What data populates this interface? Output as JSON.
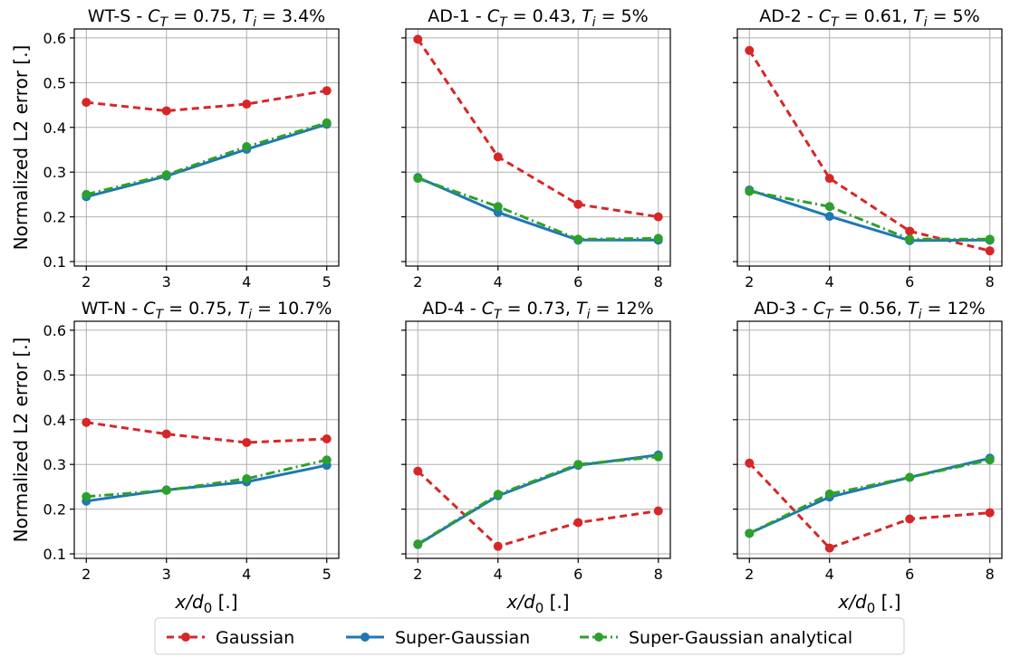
{
  "chart_data": [
    {
      "type": "line",
      "title": "WT-S - C_T = 0.75, T_i = 3.4%",
      "title_parts": {
        "name": "WT-S",
        "ct": "0.75",
        "ti": "3.4%"
      },
      "xlabel": "",
      "ylabel": "Normalized L2 error [.]",
      "x": [
        2,
        3,
        4,
        5
      ],
      "xticks": [
        2,
        3,
        4,
        5
      ],
      "ylim": [
        0.09,
        0.62
      ],
      "grid": true,
      "series": [
        {
          "name": "Gaussian",
          "values": [
            0.456,
            0.437,
            0.452,
            0.482
          ]
        },
        {
          "name": "Super-Gaussian",
          "values": [
            0.245,
            0.291,
            0.351,
            0.407
          ]
        },
        {
          "name": "Super-Gaussian analytical",
          "values": [
            0.25,
            0.294,
            0.357,
            0.41
          ]
        }
      ]
    },
    {
      "type": "line",
      "title": "AD-1 - C_T = 0.43, T_i = 5%",
      "title_parts": {
        "name": "AD-1",
        "ct": "0.43",
        "ti": "5%"
      },
      "xlabel": "",
      "ylabel": "",
      "x": [
        2,
        4,
        6,
        8
      ],
      "xticks": [
        2,
        4,
        6,
        8
      ],
      "ylim": [
        0.09,
        0.62
      ],
      "grid": true,
      "series": [
        {
          "name": "Gaussian",
          "values": [
            0.597,
            0.334,
            0.228,
            0.2
          ]
        },
        {
          "name": "Super-Gaussian",
          "values": [
            0.288,
            0.21,
            0.148,
            0.148
          ]
        },
        {
          "name": "Super-Gaussian analytical",
          "values": [
            0.286,
            0.223,
            0.15,
            0.152
          ]
        }
      ]
    },
    {
      "type": "line",
      "title": "AD-2 - C_T = 0.61, T_i = 5%",
      "title_parts": {
        "name": "AD-2",
        "ct": "0.61",
        "ti": "5%"
      },
      "xlabel": "",
      "ylabel": "",
      "x": [
        2,
        4,
        6,
        8
      ],
      "xticks": [
        2,
        4,
        6,
        8
      ],
      "ylim": [
        0.09,
        0.62
      ],
      "grid": true,
      "series": [
        {
          "name": "Gaussian",
          "values": [
            0.572,
            0.286,
            0.168,
            0.124
          ]
        },
        {
          "name": "Super-Gaussian",
          "values": [
            0.26,
            0.201,
            0.147,
            0.148
          ]
        },
        {
          "name": "Super-Gaussian analytical",
          "values": [
            0.257,
            0.223,
            0.15,
            0.15
          ]
        }
      ]
    },
    {
      "type": "line",
      "title": "WT-N - C_T = 0.75, T_i = 10.7%",
      "title_parts": {
        "name": "WT-N",
        "ct": "0.75",
        "ti": "10.7%"
      },
      "xlabel": "x/d_0 [.]",
      "ylabel": "Normalized L2 error [.]",
      "x": [
        2,
        3,
        4,
        5
      ],
      "xticks": [
        2,
        3,
        4,
        5
      ],
      "ylim": [
        0.09,
        0.62
      ],
      "grid": true,
      "series": [
        {
          "name": "Gaussian",
          "values": [
            0.394,
            0.368,
            0.349,
            0.357
          ]
        },
        {
          "name": "Super-Gaussian",
          "values": [
            0.218,
            0.243,
            0.261,
            0.298
          ]
        },
        {
          "name": "Super-Gaussian analytical",
          "values": [
            0.228,
            0.242,
            0.268,
            0.31
          ]
        }
      ]
    },
    {
      "type": "line",
      "title": "AD-4 - C_T = 0.73, T_i = 12%",
      "title_parts": {
        "name": "AD-4",
        "ct": "0.73",
        "ti": "12%"
      },
      "xlabel": "x/d_0 [.]",
      "ylabel": "",
      "x": [
        2,
        4,
        6,
        8
      ],
      "xticks": [
        2,
        4,
        6,
        8
      ],
      "ylim": [
        0.09,
        0.62
      ],
      "grid": true,
      "series": [
        {
          "name": "Gaussian",
          "values": [
            0.285,
            0.117,
            0.17,
            0.196
          ]
        },
        {
          "name": "Super-Gaussian",
          "values": [
            0.121,
            0.23,
            0.298,
            0.321
          ]
        },
        {
          "name": "Super-Gaussian analytical",
          "values": [
            0.122,
            0.233,
            0.3,
            0.317
          ]
        }
      ]
    },
    {
      "type": "line",
      "title": "AD-3 - C_T = 0.56, T_i = 12%",
      "title_parts": {
        "name": "AD-3",
        "ct": "0.56",
        "ti": "12%"
      },
      "xlabel": "x/d_0 [.]",
      "ylabel": "",
      "x": [
        2,
        4,
        6,
        8
      ],
      "xticks": [
        2,
        4,
        6,
        8
      ],
      "ylim": [
        0.09,
        0.62
      ],
      "grid": true,
      "series": [
        {
          "name": "Gaussian",
          "values": [
            0.303,
            0.113,
            0.178,
            0.192
          ]
        },
        {
          "name": "Super-Gaussian",
          "values": [
            0.146,
            0.227,
            0.271,
            0.314
          ]
        },
        {
          "name": "Super-Gaussian analytical",
          "values": [
            0.146,
            0.234,
            0.271,
            0.31
          ]
        }
      ]
    }
  ],
  "shared": {
    "yticks": [
      0.1,
      0.2,
      0.3,
      0.4,
      0.5,
      0.6
    ],
    "ytick_labels": [
      "0.1",
      "0.2",
      "0.3",
      "0.4",
      "0.5",
      "0.6"
    ],
    "legend_position": "bottom-center"
  },
  "legend": [
    {
      "label": "Gaussian",
      "color": "#d62728",
      "dash": "dashed"
    },
    {
      "label": "Super-Gaussian",
      "color": "#1f77b4",
      "dash": "solid"
    },
    {
      "label": "Super-Gaussian analytical",
      "color": "#2ca02c",
      "dash": "dashdot"
    }
  ],
  "colors": {
    "gaussian": "#d62728",
    "super_gaussian": "#1f77b4",
    "super_gaussian_analytical": "#2ca02c",
    "grid": "#b0b0b0",
    "axes": "#000000"
  }
}
